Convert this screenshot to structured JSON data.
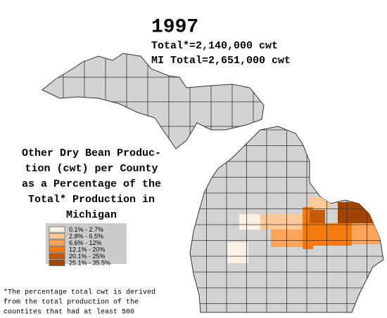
{
  "header": {
    "year": "1997",
    "total": "Total*=2,140,000 cwt",
    "mi_total": "MI Total=2,651,000 cwt"
  },
  "title": [
    "Other Dry Bean Produc-",
    "tion (cwt) per County",
    "as a Percentage of the",
    "Total* Production in",
    "Michigan"
  ],
  "legend": [
    {
      "label": "0.1% - 2.7%",
      "color": "#fdf1e6"
    },
    {
      "label": "2.8% - 6.5%",
      "color": "#fdc999"
    },
    {
      "label": "6.6% - 12%",
      "color": "#fca55a"
    },
    {
      "label": "12.1% - 20%",
      "color": "#f97b0f"
    },
    {
      "label": "20.1% - 25%",
      "color": "#c45a0a"
    },
    {
      "label": "25.1% - 35.5%",
      "color": "#a04504"
    }
  ],
  "footnote": [
    "*The percentage total cwt is derived",
    "from the total production of the",
    "countites that had at least 500"
  ]
}
